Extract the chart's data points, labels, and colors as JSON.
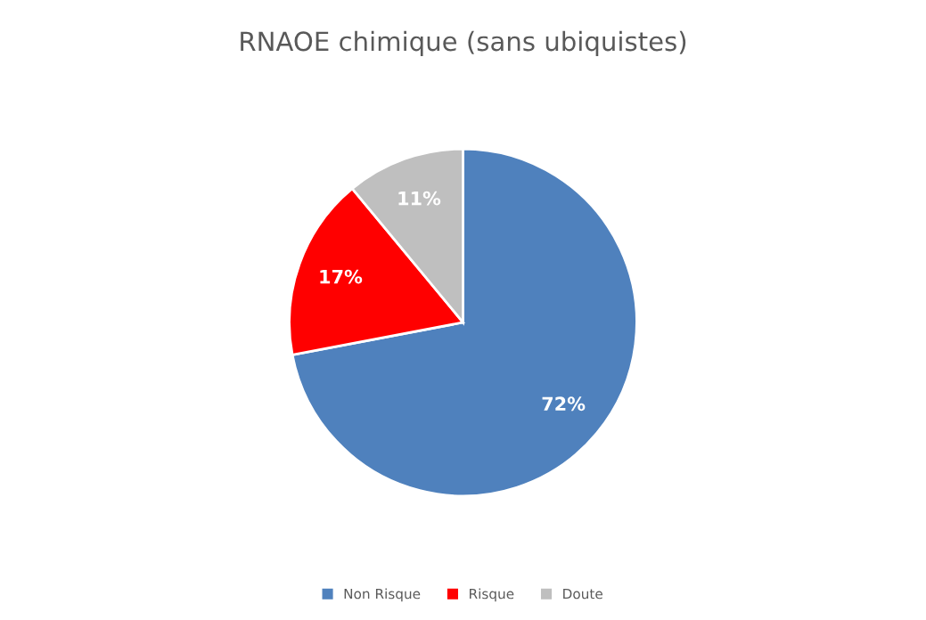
{
  "chart_data": {
    "type": "pie",
    "title": "RNAOE chimique (sans ubiquistes)",
    "categories": [
      "Non Risque",
      "Risque",
      "Doute"
    ],
    "values": [
      72,
      17,
      11
    ],
    "colors": [
      "#4f81bd",
      "#ff0000",
      "#bfbfbf"
    ],
    "value_labels": [
      "72%",
      "17%",
      "11%"
    ],
    "legend": "bottom"
  }
}
